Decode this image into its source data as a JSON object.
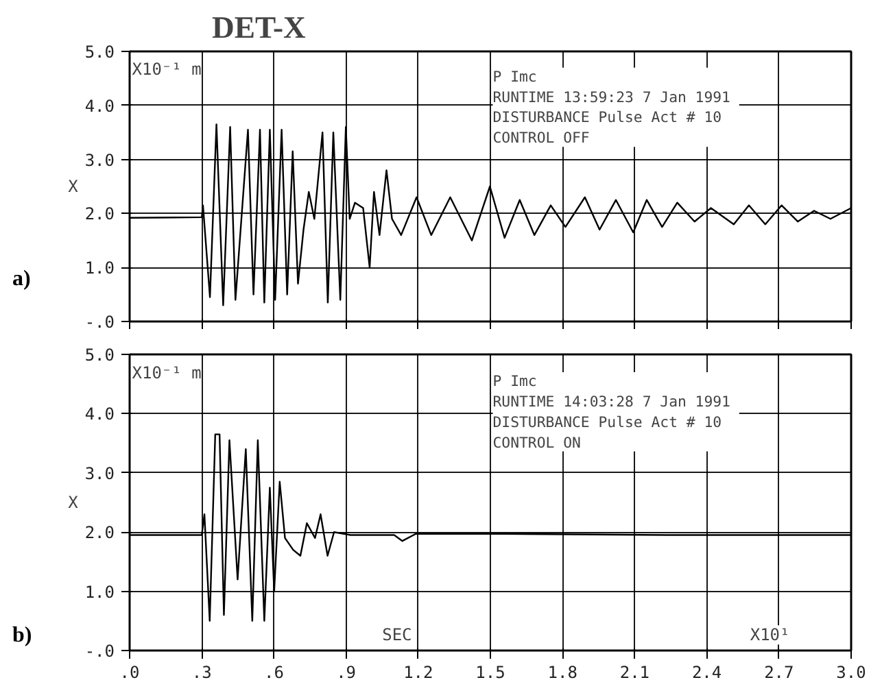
{
  "chart_data": [
    {
      "type": "line",
      "title": "DET-X",
      "ylabel": "X",
      "annotations": [
        "a)",
        "X10⁻¹ m",
        "P Imc\nRUNTIME 13:59:23  7 Jan 1991\nDISTURBANCE Pulse Act # 10\nCONTROL OFF"
      ],
      "xlim": [
        0,
        3
      ],
      "xticks": [
        {
          "value": 0,
          "label": null
        },
        {
          "value": 0.3,
          "label": null
        },
        {
          "value": 0.6,
          "label": null
        },
        {
          "value": 0.9,
          "label": null
        },
        {
          "value": 1.2,
          "label": null
        },
        {
          "value": 1.5,
          "label": null
        },
        {
          "value": 1.8,
          "label": null
        },
        {
          "value": 2.1,
          "label": null
        },
        {
          "value": 2.4,
          "label": null
        },
        {
          "value": 2.7,
          "label": null
        },
        {
          "value": 3,
          "label": null
        }
      ],
      "ylim": [
        0,
        5
      ],
      "yticks": [
        {
          "value": 0,
          "label": "-.0"
        },
        {
          "value": 1,
          "label": "1.0"
        },
        {
          "value": 2,
          "label": "2.0"
        },
        {
          "value": 3,
          "label": "3.0"
        },
        {
          "value": 4,
          "label": "4.0"
        },
        {
          "value": 5,
          "label": "5.0"
        }
      ],
      "grid": true,
      "tick_labels": "y",
      "series": [
        {
          "color": "#000000",
          "x": [
            0,
            0.3,
            0.305,
            0.334,
            0.361,
            0.389,
            0.418,
            0.44,
            0.492,
            0.515,
            0.542,
            0.56,
            0.583,
            0.605,
            0.632,
            0.655,
            0.678,
            0.7,
            0.723,
            0.745,
            0.768,
            0.802,
            0.824,
            0.847,
            0.876,
            0.899,
            0.915,
            0.937,
            0.971,
            0.998,
            1.016,
            1.039,
            1.068,
            1.091,
            1.129,
            1.193,
            1.254,
            1.333,
            1.423,
            1.498,
            1.559,
            1.622,
            1.683,
            1.751,
            1.812,
            1.893,
            1.954,
            2.022,
            2.094,
            2.15,
            2.214,
            2.277,
            2.349,
            2.417,
            2.512,
            2.575,
            2.643,
            2.711,
            2.778,
            2.846,
            2.914,
            3.0
          ],
          "values": [
            1.92,
            1.93,
            2.15,
            0.45,
            3.65,
            0.3,
            3.6,
            0.4,
            3.55,
            0.5,
            3.55,
            0.35,
            3.55,
            0.4,
            3.55,
            0.5,
            3.15,
            0.7,
            1.7,
            2.4,
            1.9,
            3.5,
            0.35,
            3.5,
            0.4,
            3.6,
            1.9,
            2.2,
            2.1,
            1.0,
            2.4,
            1.6,
            2.8,
            1.9,
            1.6,
            2.3,
            1.6,
            2.3,
            1.5,
            2.5,
            1.55,
            2.25,
            1.6,
            2.15,
            1.75,
            2.3,
            1.7,
            2.25,
            1.65,
            2.25,
            1.75,
            2.2,
            1.85,
            2.1,
            1.8,
            2.15,
            1.8,
            2.15,
            1.85,
            2.05,
            1.9,
            2.1
          ]
        }
      ]
    },
    {
      "type": "line",
      "ylabel": "X",
      "xlabel": "SEC",
      "annotations": [
        "b)",
        "X10⁻¹ m",
        "P Imc\nRUNTIME 14:03:28  7 Jan 1991\nDISTURBANCE Pulse Act # 10\nCONTROL ON",
        "X10¹"
      ],
      "xlim": [
        0,
        3
      ],
      "xticks": [
        {
          "value": 0,
          "label": ".0"
        },
        {
          "value": 0.3,
          "label": ".3"
        },
        {
          "value": 0.6,
          "label": ".6"
        },
        {
          "value": 0.9,
          "label": ".9"
        },
        1.2,
        1.5,
        1.8,
        2.1,
        2.4,
        2.7,
        {
          "value": 3,
          "label": "3.0"
        }
      ],
      "ylim": [
        0,
        5
      ],
      "yticks": [
        {
          "value": 0,
          "label": "-.0"
        },
        {
          "value": 1,
          "label": "1.0"
        },
        {
          "value": 2,
          "label": "2.0"
        },
        {
          "value": 3,
          "label": "3.0"
        },
        {
          "value": 4,
          "label": "4.0"
        },
        {
          "value": 5,
          "label": "5.0"
        }
      ],
      "grid": true,
      "series": [
        {
          "color": "#000000",
          "x": [
            0,
            0.3,
            0.311,
            0.333,
            0.356,
            0.374,
            0.392,
            0.415,
            0.449,
            0.483,
            0.51,
            0.533,
            0.56,
            0.583,
            0.601,
            0.624,
            0.646,
            0.68,
            0.71,
            0.737,
            0.771,
            0.794,
            0.823,
            0.85,
            0.918,
            1.1,
            1.134,
            1.19,
            1.553,
            2.234,
            3.0
          ],
          "values": [
            1.95,
            1.95,
            2.3,
            0.5,
            3.65,
            3.65,
            0.6,
            3.55,
            1.2,
            3.4,
            0.5,
            3.55,
            0.5,
            2.75,
            1.0,
            2.85,
            1.9,
            1.7,
            1.6,
            2.15,
            1.9,
            2.3,
            1.6,
            2.0,
            1.95,
            1.95,
            1.85,
            1.97,
            1.97,
            1.95,
            1.95
          ]
        }
      ]
    }
  ]
}
